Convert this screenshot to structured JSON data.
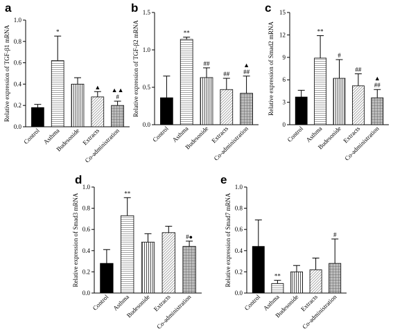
{
  "colors": {
    "text": "#000000",
    "axis": "#000000"
  },
  "chart_data": [
    {
      "type": "bar",
      "panel_label": "a",
      "ylabel": "Relative expression of TGF-β1 mRNA",
      "categories": [
        "Control",
        "Asthma",
        "Budesonide",
        "Extracts",
        "Co-administration"
      ],
      "values": [
        0.18,
        0.62,
        0.4,
        0.28,
        0.2
      ],
      "errors": [
        0.03,
        0.23,
        0.06,
        0.05,
        0.04
      ],
      "annotations": [
        "",
        "*",
        "",
        "▲",
        "▲▲\n#"
      ],
      "patterns": [
        "solid",
        "hlines",
        "vlines",
        "diag",
        "grid"
      ],
      "ylim": [
        0,
        1.0
      ],
      "yticks": [
        "0.0",
        "0.2",
        "0.4",
        "0.6",
        "0.8",
        "1.0"
      ],
      "ytick_values": [
        0,
        0.2,
        0.4,
        0.6,
        0.8,
        1.0
      ]
    },
    {
      "type": "bar",
      "panel_label": "b",
      "ylabel": "Relative expression of TGF-β2 mRNA",
      "categories": [
        "Control",
        "Asthma",
        "Budesonide",
        "Extracts",
        "Co-administration"
      ],
      "values": [
        0.36,
        1.14,
        0.63,
        0.47,
        0.42
      ],
      "errors": [
        0.29,
        0.03,
        0.13,
        0.15,
        0.23
      ],
      "annotations": [
        "",
        "**",
        "##",
        "##",
        "▲\n##"
      ],
      "patterns": [
        "solid",
        "hlines",
        "vlines",
        "diag",
        "grid"
      ],
      "ylim": [
        0,
        1.5
      ],
      "yticks": [
        "0.0",
        "0.5",
        "1.0",
        "1.5"
      ],
      "ytick_values": [
        0,
        0.5,
        1.0,
        1.5
      ]
    },
    {
      "type": "bar",
      "panel_label": "c",
      "ylabel": "Relative expression of Smad2 mRNA",
      "categories": [
        "Control",
        "Asthma",
        "Budesonide",
        "Extracts",
        "Co-administration"
      ],
      "values": [
        3.7,
        8.9,
        6.2,
        5.2,
        3.6
      ],
      "errors": [
        0.9,
        3.0,
        2.5,
        1.6,
        1.1
      ],
      "annotations": [
        "",
        "**",
        "#",
        "##",
        "▲\n##"
      ],
      "patterns": [
        "solid",
        "hlines",
        "vlines",
        "diag",
        "grid"
      ],
      "ylim": [
        0,
        15
      ],
      "yticks": [
        "0",
        "3",
        "6",
        "9",
        "12",
        "15"
      ],
      "ytick_values": [
        0,
        3,
        6,
        9,
        12,
        15
      ]
    },
    {
      "type": "bar",
      "panel_label": "d",
      "ylabel": "Relative  expression of Smad3 mRNA",
      "categories": [
        "Control",
        "Asthma",
        "Budesonide",
        "Extracts",
        "Co-administration"
      ],
      "values": [
        0.28,
        0.73,
        0.48,
        0.57,
        0.44
      ],
      "errors": [
        0.13,
        0.17,
        0.08,
        0.06,
        0.05
      ],
      "annotations": [
        "",
        "**",
        "",
        "",
        "#●"
      ],
      "patterns": [
        "solid",
        "hlines",
        "vlines",
        "diag",
        "grid"
      ],
      "ylim": [
        0,
        1.0
      ],
      "yticks": [
        "0.0",
        "0.2",
        "0.4",
        "0.6",
        "0.8",
        "1.0"
      ],
      "ytick_values": [
        0,
        0.2,
        0.4,
        0.6,
        0.8,
        1.0
      ]
    },
    {
      "type": "bar",
      "panel_label": "e",
      "ylabel": "Relative expression of Smad7 mRNA",
      "categories": [
        "Control",
        "Asthma",
        "Budesonide",
        "Extracts",
        "Co-administration"
      ],
      "values": [
        0.44,
        0.09,
        0.2,
        0.22,
        0.28
      ],
      "errors": [
        0.25,
        0.03,
        0.06,
        0.11,
        0.23
      ],
      "annotations": [
        "",
        "**",
        "",
        "",
        "#"
      ],
      "patterns": [
        "solid",
        "hlines",
        "vlines",
        "diag",
        "grid"
      ],
      "ylim": [
        0,
        1.0
      ],
      "yticks": [
        "0.0",
        "0.2",
        "0.4",
        "0.6",
        "0.8",
        "1.0"
      ],
      "ytick_values": [
        0,
        0.2,
        0.4,
        0.6,
        0.8,
        1.0
      ]
    }
  ]
}
